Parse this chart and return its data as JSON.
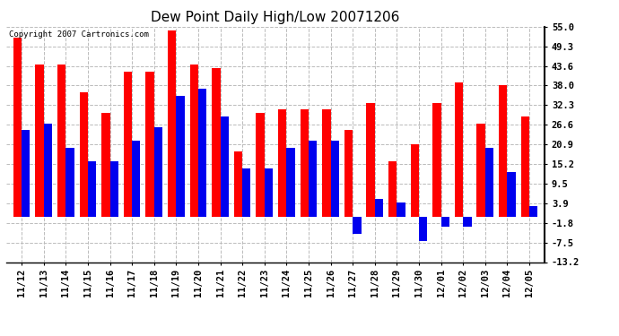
{
  "title": "Dew Point Daily High/Low 20071206",
  "copyright": "Copyright 2007 Cartronics.com",
  "dates": [
    "11/12",
    "11/13",
    "11/14",
    "11/15",
    "11/16",
    "11/17",
    "11/18",
    "11/19",
    "11/20",
    "11/21",
    "11/22",
    "11/23",
    "11/24",
    "11/25",
    "11/26",
    "11/27",
    "11/28",
    "11/29",
    "11/30",
    "12/01",
    "12/02",
    "12/03",
    "12/04",
    "12/05"
  ],
  "highs": [
    52,
    44,
    44,
    36,
    30,
    42,
    42,
    54,
    44,
    43,
    19,
    30,
    31,
    31,
    31,
    25,
    33,
    16,
    21,
    33,
    39,
    27,
    38,
    29
  ],
  "lows": [
    25,
    27,
    20,
    16,
    16,
    22,
    26,
    35,
    37,
    29,
    14,
    14,
    20,
    22,
    22,
    -5,
    5,
    4,
    -7,
    -3,
    -3,
    20,
    13,
    3
  ],
  "ylim_min": -13.2,
  "ylim_max": 55.0,
  "yticks": [
    55.0,
    49.3,
    43.6,
    38.0,
    32.3,
    26.6,
    20.9,
    15.2,
    9.5,
    3.9,
    -1.8,
    -7.5,
    -13.2
  ],
  "bar_width": 0.38,
  "high_color": "#ff0000",
  "low_color": "#0000ee",
  "bg_color": "#ffffff",
  "plot_bg_color": "#ffffff",
  "grid_color": "#bbbbbb",
  "title_fontsize": 11,
  "tick_fontsize": 7.5,
  "copyright_fontsize": 6.5
}
